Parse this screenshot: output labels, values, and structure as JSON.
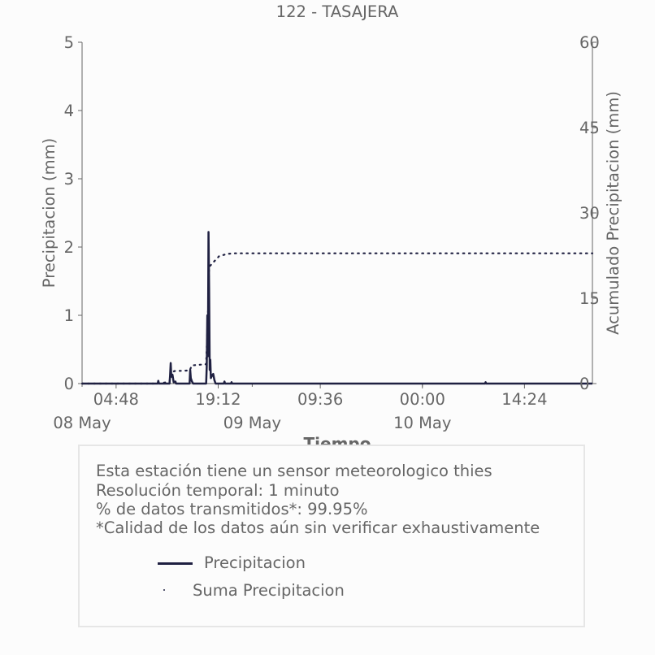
{
  "title": "122 - TASAJERA",
  "colors": {
    "series": "#1f2041",
    "text": "#666666",
    "axis": "#666666",
    "box_border": "#e6e6e6"
  },
  "info": {
    "lines": [
      "Esta estación tiene un sensor meteorologico thies",
      "Resolución temporal: 1 minuto",
      "% de datos transmitidos*: 99.95%",
      "*Calidad de los datos aún sin verificar exhaustivamente"
    ]
  },
  "legend": {
    "precip": "Precipitacion",
    "sum": "Suma Precipitacion"
  },
  "chart_data": {
    "type": "line",
    "title": "122 - TASAJERA",
    "xlabel": "Tiempo",
    "ylabel": "Precipitacion (mm)",
    "y2label": "Acumulado Precipitacion (mm)",
    "xlim": [
      "2024-05-08T00:00",
      "2024-05-10T23:59"
    ],
    "ylim": [
      0,
      5
    ],
    "y2lim": [
      0,
      60
    ],
    "x_ticks": [
      {
        "t": "2024-05-08T04:48",
        "label": "04:48"
      },
      {
        "t": "2024-05-08T19:12",
        "label": "19:12"
      },
      {
        "t": "2024-05-09T09:36",
        "label": "09:36"
      },
      {
        "t": "2024-05-10T00:00",
        "label": "00:00"
      },
      {
        "t": "2024-05-10T14:24",
        "label": "14:24"
      }
    ],
    "x_minor_ticks": [
      "2024-05-08T00:00",
      "2024-05-09T00:00",
      "2024-05-10T00:00"
    ],
    "date_labels": [
      {
        "t": "2024-05-08T00:00",
        "label": "08 May"
      },
      {
        "t": "2024-05-09T00:00",
        "label": "09 May"
      },
      {
        "t": "2024-05-10T00:00",
        "label": "10 May"
      }
    ],
    "y_ticks": [
      0,
      1,
      2,
      3,
      4,
      5
    ],
    "y2_ticks": [
      0,
      15,
      30,
      45,
      60
    ],
    "grid": false,
    "series": [
      {
        "name": "Precipitacion",
        "style": "line",
        "points": [
          [
            "2024-05-08T00:00",
            0
          ],
          [
            "2024-05-08T10:40",
            0
          ],
          [
            "2024-05-08T10:45",
            0.04
          ],
          [
            "2024-05-08T10:50",
            0
          ],
          [
            "2024-05-08T12:20",
            0
          ],
          [
            "2024-05-08T12:25",
            0.12
          ],
          [
            "2024-05-08T12:30",
            0.3
          ],
          [
            "2024-05-08T12:35",
            0.1
          ],
          [
            "2024-05-08T12:45",
            0.13
          ],
          [
            "2024-05-08T12:55",
            0.02
          ],
          [
            "2024-05-08T13:10",
            0.03
          ],
          [
            "2024-05-08T13:15",
            0
          ],
          [
            "2024-05-08T15:10",
            0
          ],
          [
            "2024-05-08T15:15",
            0.2
          ],
          [
            "2024-05-08T15:20",
            0.08
          ],
          [
            "2024-05-08T15:30",
            0.03
          ],
          [
            "2024-05-08T15:40",
            0.0
          ],
          [
            "2024-05-08T17:30",
            0
          ],
          [
            "2024-05-08T17:35",
            0.25
          ],
          [
            "2024-05-08T17:40",
            1.0
          ],
          [
            "2024-05-08T17:45",
            0.4
          ],
          [
            "2024-05-08T17:50",
            2.22
          ],
          [
            "2024-05-08T17:55",
            1.4
          ],
          [
            "2024-05-08T18:00",
            0.2
          ],
          [
            "2024-05-08T18:05",
            0.35
          ],
          [
            "2024-05-08T18:10",
            0.08
          ],
          [
            "2024-05-08T18:20",
            0.12
          ],
          [
            "2024-05-08T18:30",
            0.14
          ],
          [
            "2024-05-08T18:40",
            0.05
          ],
          [
            "2024-05-08T18:50",
            0
          ],
          [
            "2024-05-08T20:00",
            0
          ],
          [
            "2024-05-08T20:05",
            0.03
          ],
          [
            "2024-05-08T20:10",
            0
          ],
          [
            "2024-05-08T21:00",
            0
          ],
          [
            "2024-05-08T21:05",
            0.02
          ],
          [
            "2024-05-08T21:10",
            0
          ],
          [
            "2024-05-10T08:50",
            0
          ],
          [
            "2024-05-10T08:55",
            0.02
          ],
          [
            "2024-05-10T09:00",
            0
          ],
          [
            "2024-05-10T23:59",
            0
          ]
        ]
      },
      {
        "name": "Suma Precipitacion",
        "style": "dots",
        "points": [
          [
            "2024-05-08T00:00",
            0
          ],
          [
            "2024-05-08T10:40",
            0
          ],
          [
            "2024-05-08T12:20",
            0.3
          ],
          [
            "2024-05-08T12:30",
            1.6
          ],
          [
            "2024-05-08T13:00",
            2.2
          ],
          [
            "2024-05-08T15:10",
            2.3
          ],
          [
            "2024-05-08T15:30",
            3.2
          ],
          [
            "2024-05-08T17:30",
            3.4
          ],
          [
            "2024-05-08T17:45",
            12.0
          ],
          [
            "2024-05-08T17:55",
            20.5
          ],
          [
            "2024-05-08T18:30",
            21.3
          ],
          [
            "2024-05-08T19:20",
            22.4
          ],
          [
            "2024-05-08T20:30",
            22.8
          ],
          [
            "2024-05-08T21:30",
            22.9
          ],
          [
            "2024-05-10T23:59",
            22.9
          ]
        ]
      }
    ]
  }
}
